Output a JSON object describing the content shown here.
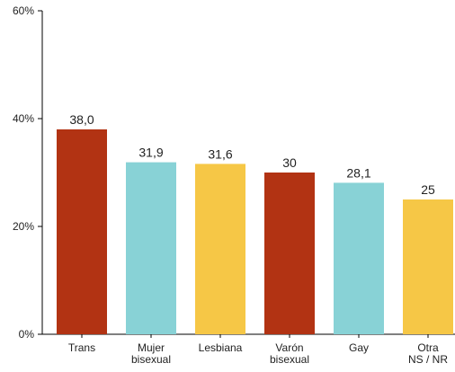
{
  "chart_data": {
    "type": "bar",
    "categories": [
      [
        "Trans"
      ],
      [
        "Mujer",
        "bisexual"
      ],
      [
        "Lesbiana"
      ],
      [
        "Varón",
        "bisexual"
      ],
      [
        "Gay"
      ],
      [
        "Otra",
        "NS / NR"
      ]
    ],
    "values": [
      38.0,
      31.9,
      31.6,
      30,
      28.1,
      25
    ],
    "value_labels": [
      "38,0",
      "31,9",
      "31,6",
      "30",
      "28,1",
      "25"
    ],
    "bar_colors": [
      "#b23313",
      "#88d2d6",
      "#f6c746",
      "#b23313",
      "#88d2d6",
      "#f6c746"
    ],
    "yticks": [
      0,
      20,
      40,
      60
    ],
    "ytick_labels": [
      "0%",
      "20%",
      "40%",
      "60%"
    ],
    "ylim": [
      0,
      60
    ],
    "title": "",
    "xlabel": "",
    "ylabel": "",
    "grid": false,
    "legend": "none"
  }
}
